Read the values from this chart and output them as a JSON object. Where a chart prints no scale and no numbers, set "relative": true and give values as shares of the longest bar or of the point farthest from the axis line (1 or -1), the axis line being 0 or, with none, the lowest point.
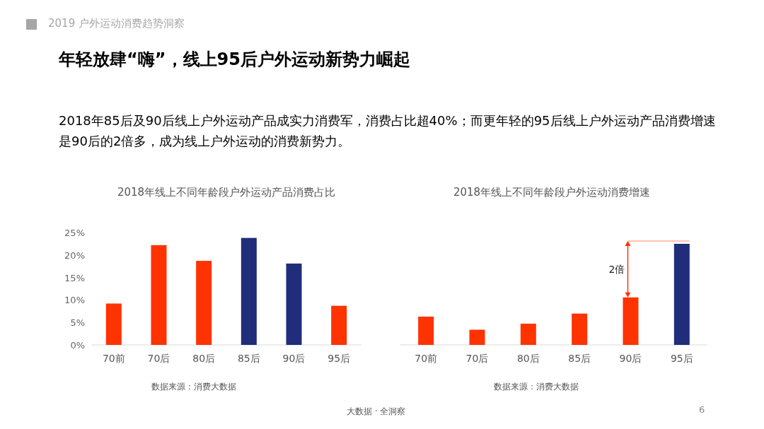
{
  "chart_data": [
    {
      "type": "bar",
      "title": "2018年线上不同年龄段户外运动产品消费占比",
      "categories": [
        "70前",
        "70后",
        "80后",
        "85后",
        "90后",
        "95后"
      ],
      "values": [
        9.2,
        22.2,
        18.7,
        23.8,
        18.1,
        8.7
      ],
      "colors": [
        "#ff3300",
        "#ff3300",
        "#ff3300",
        "#1f2d7b",
        "#1f2d7b",
        "#ff3300"
      ],
      "ylim": [
        0,
        25
      ],
      "yticks": [
        {
          "value": 0,
          "label": "0%"
        },
        {
          "value": 5,
          "label": "5%"
        },
        {
          "value": 10,
          "label": "10%"
        },
        {
          "value": 15,
          "label": "15%"
        },
        {
          "value": 20,
          "label": "20%"
        },
        {
          "value": 25,
          "label": "25%"
        }
      ],
      "annotations": [
        "2019 户外运动消费趋势洞察",
        "年轻放肆“嗨”，线上95后户外运动新势力崛起",
        "2018年85后及90后线上户外运动产品成实力消费军，消费占比超40%；而更年轻的95后线上户外运动产品消费增速是90后的2倍多，成为线上户外运动的消费新势力。",
        "数据来源：消费大数据",
        "大数据 · 全洞察",
        "6"
      ]
    },
    {
      "type": "bar",
      "title": "2018年线上不同年龄段户外运动消费增速",
      "relative": true,
      "categories": [
        "70前",
        "70后",
        "80后",
        "85后",
        "90后",
        "95后"
      ],
      "values": [
        0.28,
        0.15,
        0.21,
        0.31,
        0.47,
        1
      ],
      "colors": [
        "#ff3300",
        "#ff3300",
        "#ff3300",
        "#ff3300",
        "#ff3300",
        "#1f2d7b"
      ],
      "annotations": [
        "2倍",
        "数据来源：消费大数据"
      ]
    }
  ]
}
